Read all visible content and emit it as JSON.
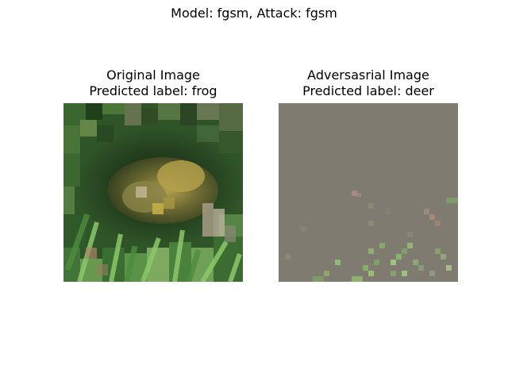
{
  "figure": {
    "suptitle": "Model: fgsm, Attack: fgsm"
  },
  "panels": [
    {
      "title_line1": "Original Image",
      "title_line2": "Predicted label: frog",
      "image_description": "Low-resolution (32x32) photo of a green frog among grass and leaves"
    },
    {
      "title_line1": "Adversasrial Image",
      "title_line2": " Predicted label: deer",
      "image_description": "Mostly uniform gray image with sparse faint pixel noise and green pixels near the bottom"
    }
  ],
  "colors": {
    "background": "#ffffff",
    "adversarial_gray": "#7f7b70"
  }
}
